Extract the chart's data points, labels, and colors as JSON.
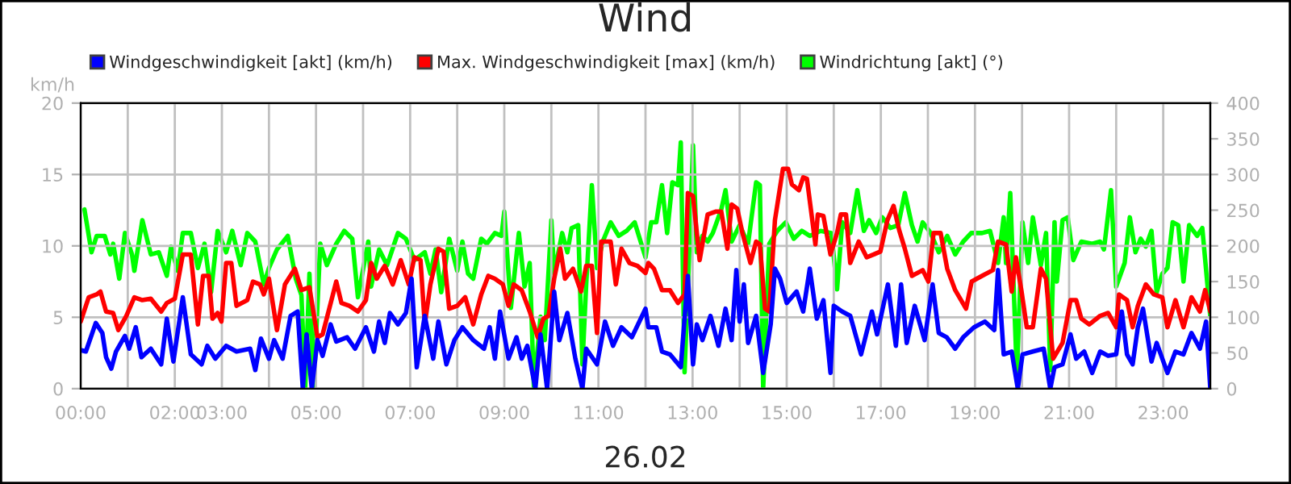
{
  "chart_data": {
    "type": "line",
    "title": "Wind",
    "xlabel": "26.02",
    "ylabel": "km/h",
    "xlim": [
      0,
      24
    ],
    "xticks": [
      {
        "value": 0,
        "label": "00:00"
      },
      {
        "value": 1,
        "label": null
      },
      {
        "value": 2,
        "label": "02:00"
      },
      {
        "value": 3,
        "label": "03:00"
      },
      {
        "value": 4,
        "label": null
      },
      {
        "value": 5,
        "label": "05:00"
      },
      {
        "value": 6,
        "label": null
      },
      {
        "value": 7,
        "label": "07:00"
      },
      {
        "value": 8,
        "label": null
      },
      {
        "value": 9,
        "label": "09:00"
      },
      {
        "value": 10,
        "label": null
      },
      {
        "value": 11,
        "label": "11:00"
      },
      {
        "value": 12,
        "label": null
      },
      {
        "value": 13,
        "label": "13:00"
      },
      {
        "value": 14,
        "label": null
      },
      {
        "value": 15,
        "label": "15:00"
      },
      {
        "value": 16,
        "label": null
      },
      {
        "value": 17,
        "label": "17:00"
      },
      {
        "value": 18,
        "label": null
      },
      {
        "value": 19,
        "label": "19:00"
      },
      {
        "value": 20,
        "label": null
      },
      {
        "value": 21,
        "label": "21:00"
      },
      {
        "value": 22,
        "label": null
      },
      {
        "value": 23,
        "label": "23:00"
      },
      {
        "value": 24,
        "label": null
      }
    ],
    "ylim": [
      0,
      20
    ],
    "yticks": [
      0,
      5,
      10,
      15,
      20
    ],
    "y2lim": [
      0,
      400
    ],
    "y2ticks": [
      0,
      50,
      100,
      150,
      200,
      250,
      300,
      350,
      400
    ],
    "grid": true,
    "legend": "top left",
    "marker": "none",
    "line_style": "solid",
    "series": [
      {
        "name": "Windgeschwindigkeit [akt] (km/h)",
        "color": "#0000ff",
        "x": [
          0,
          0.11,
          0.32,
          0.46,
          0.54,
          0.65,
          0.75,
          0.94,
          1.03,
          1.17,
          1.29,
          1.49,
          1.71,
          1.83,
          1.97,
          2.17,
          2.34,
          2.57,
          2.69,
          2.86,
          3.09,
          3.31,
          3.6,
          3.71,
          3.83,
          4.0,
          4.11,
          4.29,
          4.46,
          4.61,
          4.72,
          4.8,
          4.91,
          5.03,
          5.14,
          5.31,
          5.43,
          5.66,
          5.83,
          6.06,
          6.23,
          6.34,
          6.46,
          6.57,
          6.74,
          6.91,
          7.03,
          7.14,
          7.31,
          7.49,
          7.6,
          7.77,
          7.94,
          8.11,
          8.34,
          8.57,
          8.69,
          8.8,
          8.91,
          9.09,
          9.26,
          9.37,
          9.49,
          9.66,
          9.77,
          9.91,
          10.06,
          10.17,
          10.34,
          10.51,
          10.66,
          10.74,
          10.97,
          11.14,
          11.31,
          11.49,
          11.71,
          12.0,
          12.06,
          12.23,
          12.35,
          12.52,
          12.75,
          12.9,
          13.01,
          13.09,
          13.21,
          13.38,
          13.55,
          13.7,
          13.83,
          13.93,
          14.0,
          14.09,
          14.18,
          14.35,
          14.5,
          14.66,
          14.75,
          14.86,
          15.0,
          15.21,
          15.35,
          15.49,
          15.64,
          15.78,
          15.93,
          16.0,
          16.18,
          16.35,
          16.58,
          16.81,
          16.92,
          17.15,
          17.32,
          17.43,
          17.55,
          17.72,
          17.93,
          18.1,
          18.23,
          18.4,
          18.58,
          18.75,
          18.98,
          19.21,
          19.41,
          19.49,
          19.61,
          19.78,
          19.91,
          20.01,
          20.23,
          20.46,
          20.6,
          20.69,
          20.86,
          21.03,
          21.15,
          21.32,
          21.49,
          21.66,
          21.83,
          22.0,
          22.12,
          22.23,
          22.35,
          22.46,
          22.57,
          22.75,
          22.86,
          23.09,
          23.26,
          23.43,
          23.6,
          23.78,
          23.91,
          24.0
        ],
        "values": [
          2.7,
          2.6,
          4.6,
          3.9,
          2.2,
          1.4,
          2.6,
          3.7,
          2.8,
          4.3,
          2.2,
          2.8,
          1.7,
          4.9,
          1.9,
          6.4,
          2.4,
          1.7,
          3.0,
          2.1,
          3.0,
          2.6,
          2.8,
          1.3,
          3.5,
          2.1,
          3.4,
          2.1,
          5.1,
          5.4,
          0,
          3.8,
          0,
          3.4,
          2.3,
          4.5,
          3.3,
          3.6,
          2.8,
          4.3,
          2.6,
          4.7,
          3.2,
          5.3,
          4.5,
          5.3,
          7.7,
          1.5,
          5.1,
          2.1,
          4.7,
          1.7,
          3.4,
          4.3,
          3.4,
          2.8,
          4.3,
          2.1,
          5.4,
          2.1,
          3.6,
          2.1,
          3.0,
          0,
          3.8,
          0,
          6.8,
          3.4,
          5.3,
          2.1,
          0,
          2.8,
          1.7,
          4.7,
          3.0,
          4.3,
          3.6,
          5.6,
          4.3,
          4.3,
          2.6,
          2.4,
          1.5,
          7.9,
          1.7,
          4.5,
          3.4,
          5.1,
          3.0,
          5.6,
          3.4,
          8.3,
          4.7,
          7.3,
          3.2,
          5.1,
          1.1,
          4.5,
          8.4,
          7.7,
          6.0,
          6.8,
          5.4,
          8.4,
          4.9,
          6.2,
          1.1,
          5.8,
          5.4,
          5.1,
          2.4,
          5.4,
          3.8,
          7.3,
          3.0,
          7.3,
          3.2,
          5.8,
          3.4,
          7.3,
          3.9,
          3.6,
          2.8,
          3.6,
          4.3,
          4.7,
          4.1,
          8.3,
          2.4,
          2.6,
          0,
          2.4,
          2.6,
          2.8,
          0,
          1.5,
          1.7,
          3.8,
          2.1,
          2.6,
          1.1,
          2.6,
          2.3,
          2.4,
          5.4,
          2.4,
          1.7,
          4.3,
          5.6,
          1.9,
          3.2,
          1.1,
          2.6,
          2.4,
          3.9,
          2.8,
          4.7,
          0
        ]
      },
      {
        "name": "Max. Windgeschwindigkeit [max] (km/h)",
        "color": "#ff0000",
        "x": [
          0,
          0.17,
          0.34,
          0.42,
          0.54,
          0.69,
          0.8,
          0.97,
          1.14,
          1.31,
          1.49,
          1.71,
          1.83,
          2.0,
          2.17,
          2.34,
          2.49,
          2.6,
          2.72,
          2.8,
          2.91,
          2.99,
          3.09,
          3.2,
          3.31,
          3.54,
          3.66,
          3.81,
          3.89,
          4.0,
          4.17,
          4.34,
          4.55,
          4.69,
          4.86,
          5.03,
          5.14,
          5.43,
          5.54,
          5.71,
          5.89,
          6.06,
          6.17,
          6.29,
          6.46,
          6.63,
          6.8,
          6.97,
          7.09,
          7.22,
          7.31,
          7.43,
          7.6,
          7.71,
          7.83,
          8.0,
          8.17,
          8.34,
          8.51,
          8.66,
          8.8,
          8.97,
          9.09,
          9.2,
          9.37,
          9.54,
          9.71,
          9.83,
          9.94,
          10.06,
          10.19,
          10.29,
          10.46,
          10.63,
          10.74,
          10.86,
          10.97,
          11.06,
          11.26,
          11.37,
          11.49,
          11.66,
          11.83,
          12.0,
          12.06,
          12.18,
          12.35,
          12.52,
          12.69,
          12.83,
          12.9,
          13.01,
          13.15,
          13.32,
          13.49,
          13.61,
          13.74,
          13.83,
          13.95,
          14.06,
          14.23,
          14.35,
          14.43,
          14.54,
          14.63,
          14.75,
          14.92,
          15.03,
          15.11,
          15.26,
          15.35,
          15.43,
          15.61,
          15.66,
          15.78,
          15.93,
          16.07,
          16.15,
          16.26,
          16.35,
          16.53,
          16.7,
          16.85,
          16.99,
          17.14,
          17.27,
          17.39,
          17.51,
          17.66,
          17.89,
          18.01,
          18.12,
          18.27,
          18.41,
          18.58,
          18.81,
          18.93,
          19.15,
          19.38,
          19.49,
          19.66,
          19.78,
          19.87,
          19.99,
          20.1,
          20.23,
          20.4,
          20.51,
          20.66,
          20.86,
          21.03,
          21.15,
          21.26,
          21.43,
          21.66,
          21.83,
          22.0,
          22.06,
          22.23,
          22.35,
          22.46,
          22.63,
          22.8,
          22.98,
          23.09,
          23.26,
          23.43,
          23.6,
          23.78,
          23.89,
          24.0
        ],
        "values": [
          4.7,
          6.4,
          6.6,
          6.8,
          5.4,
          5.3,
          4.1,
          5.1,
          6.4,
          6.2,
          6.3,
          5.4,
          6.0,
          6.3,
          9.4,
          9.4,
          4.5,
          7.9,
          7.9,
          4.9,
          5.3,
          4.7,
          8.8,
          8.8,
          5.8,
          6.2,
          7.5,
          7.3,
          6.6,
          7.7,
          4.1,
          7.3,
          8.4,
          6.9,
          7.1,
          3.6,
          3.8,
          7.5,
          6.0,
          5.8,
          5.4,
          6.2,
          8.8,
          7.7,
          8.6,
          7.3,
          9.0,
          7.3,
          9.2,
          9.0,
          4.5,
          7.3,
          9.8,
          9.6,
          5.6,
          5.8,
          6.4,
          4.5,
          6.6,
          7.9,
          7.7,
          7.3,
          5.8,
          7.3,
          6.9,
          5.4,
          3.6,
          4.9,
          5.1,
          7.7,
          9.8,
          7.7,
          8.4,
          6.8,
          8.6,
          8.6,
          3.9,
          10.3,
          10.3,
          7.3,
          9.8,
          8.8,
          8.6,
          8.1,
          8.8,
          8.4,
          6.9,
          6.9,
          6.0,
          6.6,
          13.7,
          13.5,
          9.0,
          12.2,
          12.4,
          12.4,
          9.8,
          12.9,
          12.6,
          10.9,
          8.8,
          10.3,
          10.1,
          5.6,
          5.4,
          11.8,
          15.4,
          15.4,
          14.3,
          13.9,
          14.8,
          14.7,
          10.1,
          12.2,
          12.1,
          9.4,
          10.9,
          12.2,
          12.2,
          8.8,
          10.3,
          9.2,
          9.4,
          9.6,
          11.8,
          12.8,
          11.1,
          9.8,
          7.9,
          8.3,
          7.5,
          10.9,
          10.9,
          8.4,
          6.9,
          5.6,
          7.5,
          7.9,
          8.3,
          10.3,
          10.1,
          6.8,
          9.2,
          6.8,
          4.3,
          4.3,
          8.4,
          7.7,
          2.1,
          3.2,
          6.2,
          6.2,
          4.9,
          4.5,
          5.1,
          5.3,
          4.3,
          6.6,
          6.2,
          4.3,
          5.8,
          7.3,
          6.6,
          6.4,
          4.3,
          6.2,
          4.3,
          6.4,
          5.4,
          6.9,
          5.4
        ]
      },
      {
        "name": "Windrichtung [akt] (°)",
        "color": "#00ff00",
        "axis": "y2",
        "x": [
          0.08,
          0.23,
          0.34,
          0.51,
          0.63,
          0.69,
          0.82,
          0.94,
          1.09,
          1.14,
          1.31,
          1.49,
          1.66,
          1.83,
          1.92,
          2.06,
          2.17,
          2.34,
          2.49,
          2.63,
          2.77,
          2.91,
          3.09,
          3.22,
          3.4,
          3.54,
          3.71,
          3.89,
          4.0,
          4.17,
          4.4,
          4.57,
          4.69,
          4.77,
          4.86,
          4.95,
          5.09,
          5.23,
          5.43,
          5.6,
          5.77,
          5.89,
          6.11,
          6.17,
          6.34,
          6.51,
          6.74,
          6.91,
          7.09,
          7.31,
          7.43,
          7.54,
          7.66,
          7.83,
          8.0,
          8.11,
          8.23,
          8.34,
          8.51,
          8.63,
          8.8,
          8.94,
          9.0,
          9.14,
          9.31,
          9.43,
          9.54,
          9.63,
          9.77,
          9.86,
          10.0,
          10.06,
          10.23,
          10.34,
          10.43,
          10.57,
          10.66,
          10.74,
          10.86,
          10.97,
          11.09,
          11.26,
          11.43,
          11.6,
          11.77,
          12.0,
          12.12,
          12.23,
          12.35,
          12.46,
          12.57,
          12.69,
          12.75,
          12.83,
          12.92,
          13.01,
          13.09,
          13.21,
          13.32,
          13.43,
          13.61,
          13.7,
          13.83,
          14.0,
          14.18,
          14.35,
          14.43,
          14.5,
          14.63,
          14.8,
          14.98,
          15.15,
          15.32,
          15.49,
          15.72,
          15.95,
          16.07,
          16.18,
          16.35,
          16.5,
          16.64,
          16.75,
          16.9,
          17.03,
          17.2,
          17.37,
          17.51,
          17.66,
          17.78,
          17.89,
          18.06,
          18.23,
          18.41,
          18.58,
          18.75,
          18.92,
          19.15,
          19.32,
          19.49,
          19.61,
          19.66,
          19.75,
          19.89,
          20.01,
          20.13,
          20.23,
          20.4,
          20.51,
          20.6,
          20.69,
          20.74,
          20.86,
          20.97,
          21.09,
          21.26,
          21.49,
          21.66,
          21.74,
          21.89,
          22.0,
          22.18,
          22.29,
          22.41,
          22.52,
          22.63,
          22.75,
          22.86,
          22.98,
          23.09,
          23.2,
          23.32,
          23.43,
          23.55,
          23.72,
          23.83,
          24.0
        ],
        "values": [
          251,
          191,
          214,
          214,
          188,
          203,
          154,
          218,
          188,
          165,
          236,
          188,
          191,
          158,
          199,
          165,
          218,
          218,
          169,
          203,
          135,
          221,
          191,
          221,
          173,
          218,
          206,
          146,
          169,
          195,
          214,
          154,
          131,
          0,
          161,
          0,
          203,
          173,
          203,
          221,
          210,
          128,
          206,
          143,
          195,
          173,
          218,
          210,
          180,
          191,
          161,
          195,
          135,
          210,
          165,
          206,
          161,
          154,
          210,
          203,
          218,
          214,
          248,
          113,
          218,
          143,
          176,
          0,
          101,
          68,
          236,
          161,
          218,
          191,
          225,
          229,
          34,
          146,
          285,
          169,
          206,
          233,
          214,
          221,
          233,
          184,
          233,
          233,
          285,
          218,
          289,
          285,
          345,
          23,
          176,
          341,
          191,
          214,
          206,
          218,
          251,
          278,
          206,
          229,
          203,
          289,
          285,
          0,
          203,
          221,
          233,
          210,
          221,
          214,
          221,
          218,
          139,
          233,
          218,
          278,
          221,
          236,
          218,
          240,
          225,
          229,
          274,
          229,
          206,
          233,
          218,
          191,
          214,
          188,
          206,
          218,
          218,
          221,
          176,
          240,
          176,
          274,
          19,
          233,
          176,
          240,
          173,
          218,
          26,
          233,
          150,
          236,
          240,
          180,
          206,
          203,
          206,
          195,
          278,
          143,
          176,
          240,
          191,
          210,
          199,
          221,
          135,
          161,
          169,
          233,
          229,
          150,
          229,
          214,
          225,
          101
        ]
      }
    ]
  }
}
